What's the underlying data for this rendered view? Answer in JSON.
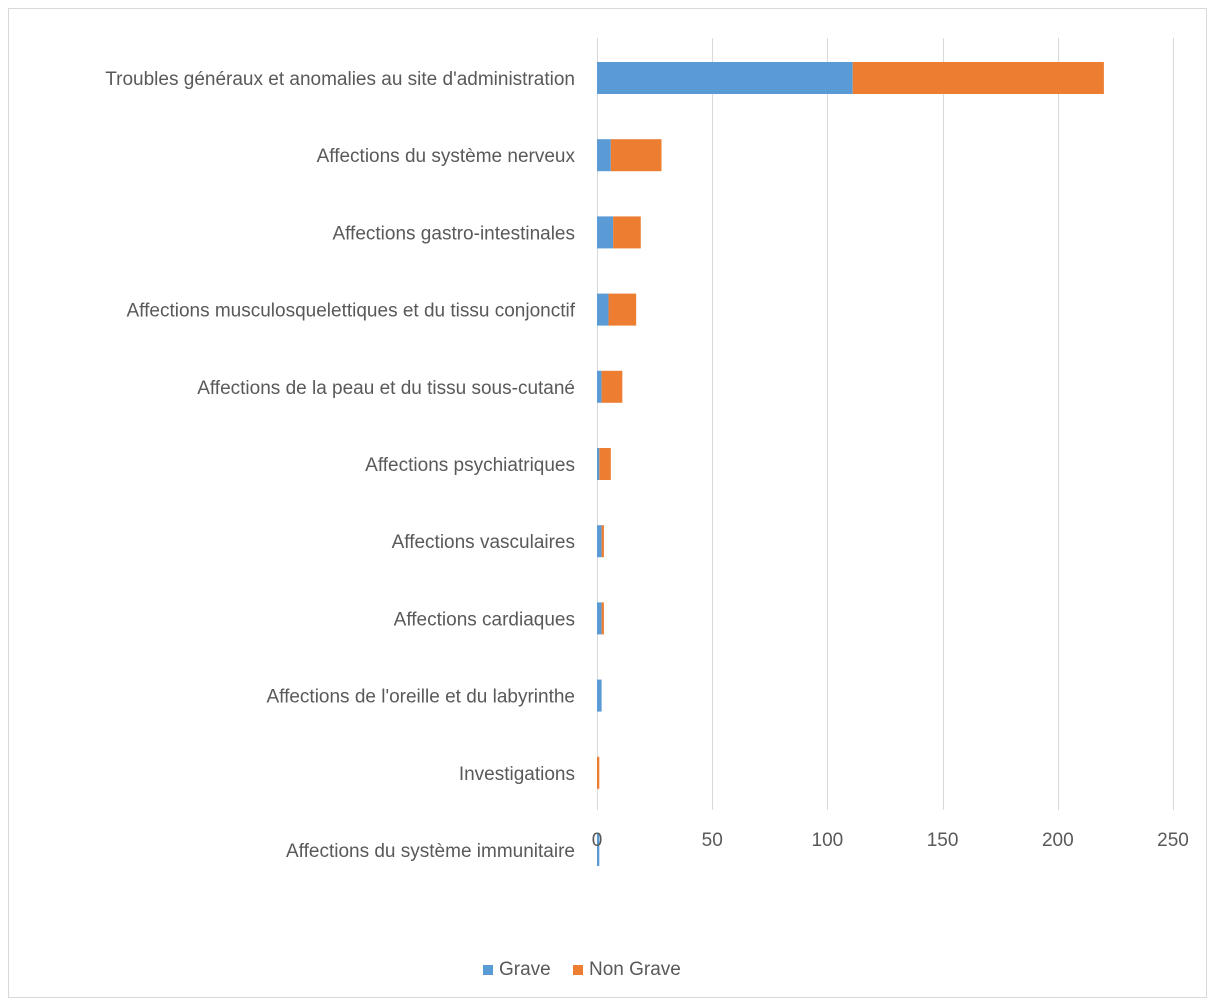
{
  "chart_data": {
    "type": "bar",
    "orientation": "horizontal",
    "stacked": true,
    "title": "",
    "xlabel": "",
    "ylabel": "",
    "categories": [
      "Troubles généraux et anomalies au site d'administration",
      "Affections du système nerveux",
      "Affections gastro-intestinales",
      "Affections musculosquelettiques et du tissu conjonctif",
      "Affections de la peau et du tissu sous-cutané",
      "Affections psychiatriques",
      "Affections vasculaires",
      "Affections cardiaques",
      "Affections de l'oreille et du labyrinthe",
      "Investigations",
      "Affections du système immunitaire"
    ],
    "series": [
      {
        "name": "Grave",
        "color": "#5b9bd5",
        "values": [
          111,
          6,
          7,
          5,
          2,
          1,
          2,
          2,
          2,
          0,
          1
        ]
      },
      {
        "name": "Non Grave",
        "color": "#ed7d31",
        "values": [
          109,
          22,
          12,
          12,
          9,
          5,
          1,
          1,
          0,
          1,
          0
        ]
      }
    ],
    "xlim": [
      0,
      250
    ],
    "xticks": [
      "0",
      "50",
      "100",
      "150",
      "200",
      "250"
    ],
    "grid": "vertical",
    "legend": "bottom-center",
    "colors": {
      "grid": "#d9d9d9",
      "text": "#595959",
      "border": "#d9d9d9"
    }
  }
}
